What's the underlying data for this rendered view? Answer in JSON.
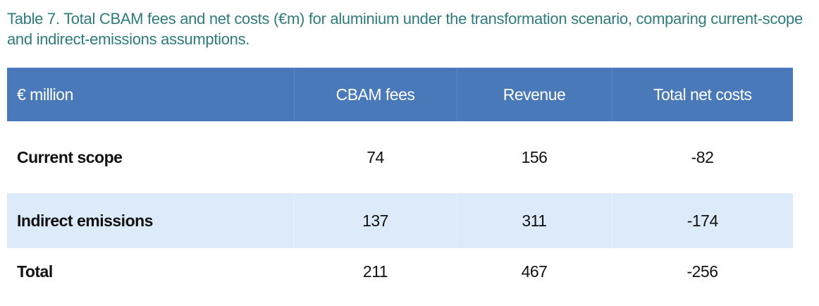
{
  "caption": "Table 7. Total CBAM fees and net costs (€m) for aluminium under the transformation scenario, comparing current-scope and indirect-emissions assumptions.",
  "table": {
    "headers": [
      "€ million",
      "CBAM fees",
      "Revenue",
      "Total net costs"
    ],
    "rows": [
      [
        "Current scope",
        "74",
        "156",
        "-82"
      ],
      [
        "Indirect emissions",
        "137",
        "311",
        "-174"
      ],
      [
        "Total",
        "211",
        "467",
        "-256"
      ]
    ]
  },
  "colors": {
    "caption": "#2e7b7b",
    "header_bg": "#4a79b9",
    "alt_row_bg": "#ddeafa"
  }
}
